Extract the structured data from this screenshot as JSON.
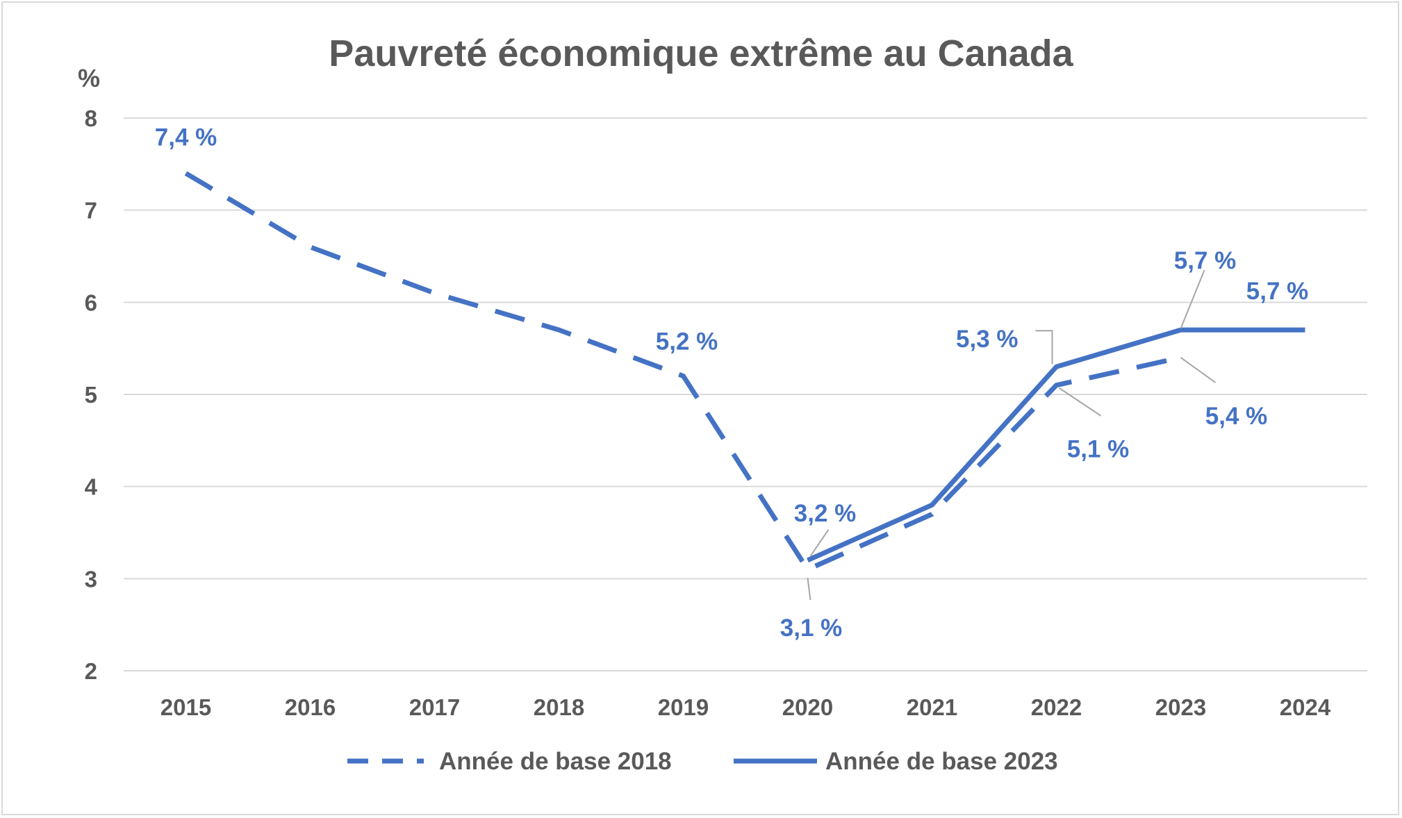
{
  "chart_data": {
    "type": "line",
    "title": "Pauvreté économique extrême au Canada",
    "ylabel": "%",
    "xlabel": "",
    "categories": [
      "2015",
      "2016",
      "2017",
      "2018",
      "2019",
      "2020",
      "2021",
      "2022",
      "2023",
      "2024"
    ],
    "ylim": [
      2,
      8
    ],
    "yticks": [
      "2",
      "3",
      "4",
      "5",
      "6",
      "7",
      "8"
    ],
    "grid": true,
    "legend_position": "bottom",
    "series": [
      {
        "name": "Année de base 2018",
        "style": "dashed",
        "color": "#4472c4",
        "values": [
          7.4,
          6.6,
          6.1,
          5.7,
          5.2,
          3.1,
          3.7,
          5.1,
          5.4,
          null
        ]
      },
      {
        "name": "Année de base 2023",
        "style": "solid",
        "color": "#4472c4",
        "values": [
          null,
          null,
          null,
          null,
          null,
          3.2,
          3.8,
          5.3,
          5.7,
          5.7
        ]
      }
    ],
    "data_labels": [
      {
        "series": 0,
        "index": 0,
        "text": "7,4 %"
      },
      {
        "series": 0,
        "index": 4,
        "text": "5,2 %"
      },
      {
        "series": 0,
        "index": 5,
        "text": "3,1 %"
      },
      {
        "series": 0,
        "index": 7,
        "text": "5,1 %"
      },
      {
        "series": 0,
        "index": 8,
        "text": "5,4 %"
      },
      {
        "series": 1,
        "index": 5,
        "text": "3,2 %"
      },
      {
        "series": 1,
        "index": 7,
        "text": "5,3 %"
      },
      {
        "series": 1,
        "index": 8,
        "text": "5,7 %"
      },
      {
        "series": 1,
        "index": 9,
        "text": "5,7 %"
      }
    ]
  }
}
